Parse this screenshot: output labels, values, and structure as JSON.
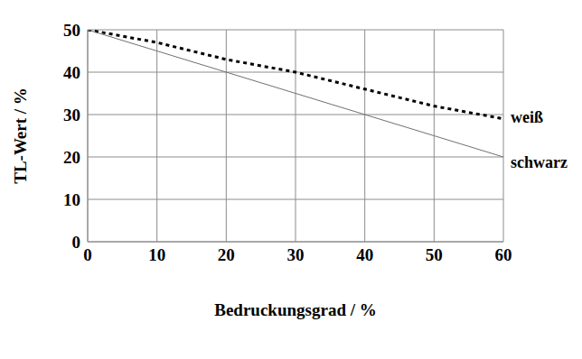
{
  "chart_data": {
    "type": "line",
    "x_label": "Bedruckungsgrad / %",
    "y_label": "TL-Wert / %",
    "x": [
      0,
      10,
      20,
      30,
      40,
      50,
      60
    ],
    "series": [
      {
        "name": "weiß",
        "color": "#000000",
        "line_style": "dotted",
        "values": [
          50,
          47,
          43,
          40,
          36,
          32,
          29
        ]
      },
      {
        "name": "schwarz",
        "color": "#707070",
        "line_style": "solid",
        "values": [
          50,
          45,
          40,
          35,
          30,
          25,
          20
        ]
      }
    ],
    "xlim": [
      0,
      60
    ],
    "xticks": [
      0,
      10,
      20,
      30,
      40,
      50,
      60
    ],
    "ylim": [
      0,
      50
    ],
    "yticks": [
      0,
      10,
      20,
      30,
      40,
      50
    ],
    "grid": true
  }
}
